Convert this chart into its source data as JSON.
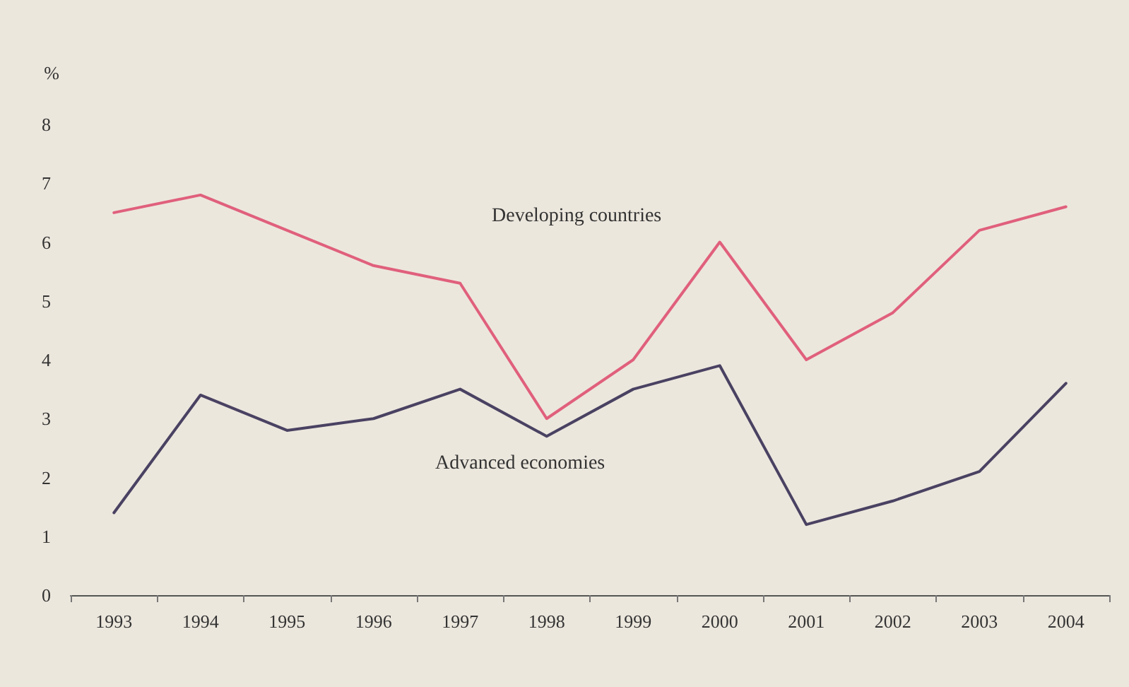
{
  "chart_data": {
    "type": "line",
    "ylabel": "%",
    "categories": [
      "1993",
      "1994",
      "1995",
      "1996",
      "1997",
      "1998",
      "1999",
      "2000",
      "2001",
      "2002",
      "2003",
      "2004"
    ],
    "series": [
      {
        "name": "Developing countries",
        "color": "#e0607c",
        "values": [
          6.5,
          6.8,
          6.2,
          5.6,
          5.3,
          3.0,
          4.0,
          6.0,
          4.0,
          4.8,
          6.2,
          6.6
        ]
      },
      {
        "name": "Advanced economies",
        "color": "#4a4262",
        "values": [
          1.4,
          3.4,
          2.8,
          3.0,
          3.5,
          2.7,
          3.5,
          3.9,
          1.2,
          1.6,
          2.1,
          3.6
        ]
      }
    ],
    "ylim": [
      0,
      8
    ],
    "yticks": [
      0,
      1,
      2,
      3,
      4,
      5,
      6,
      7,
      8
    ],
    "grid": false,
    "legend": false,
    "marker": "none",
    "line_style": "solid"
  }
}
